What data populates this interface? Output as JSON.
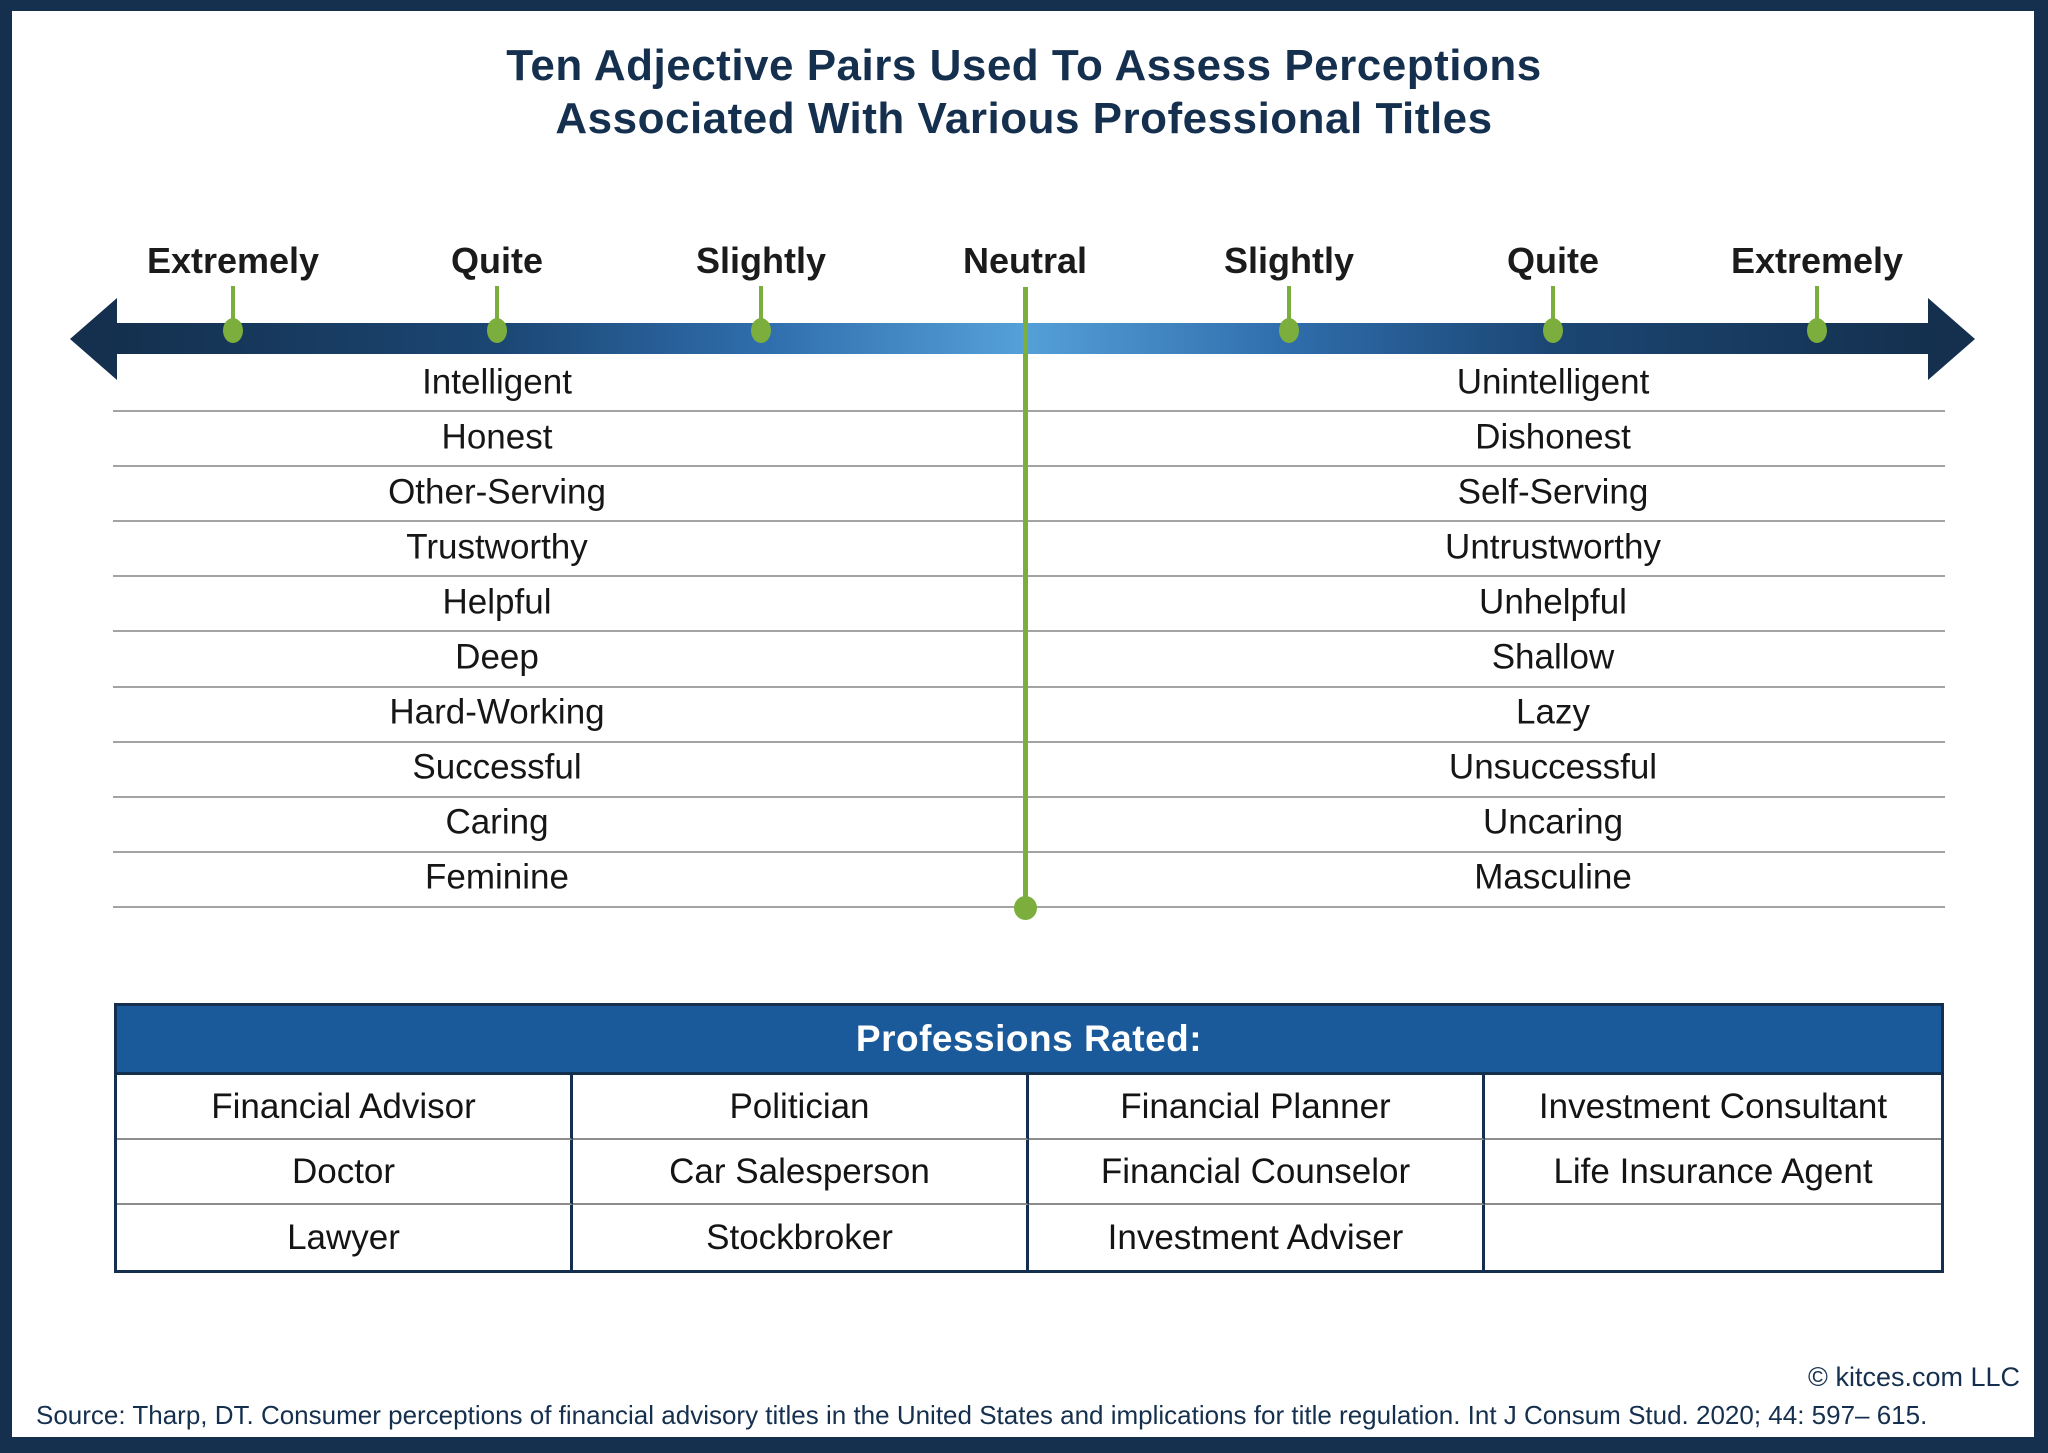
{
  "title": {
    "line1": "Ten Adjective Pairs Used To Assess Perceptions",
    "line2": "Associated With Various Professional Titles"
  },
  "scale": {
    "labels": [
      "Extremely",
      "Quite",
      "Slightly",
      "Neutral",
      "Slightly",
      "Quite",
      "Extremely"
    ],
    "neutral_index": 3
  },
  "adjective_pairs": [
    {
      "left": "Intelligent",
      "right": "Unintelligent"
    },
    {
      "left": "Honest",
      "right": "Dishonest"
    },
    {
      "left": "Other-Serving",
      "right": "Self-Serving"
    },
    {
      "left": "Trustworthy",
      "right": "Untrustworthy"
    },
    {
      "left": "Helpful",
      "right": "Unhelpful"
    },
    {
      "left": "Deep",
      "right": "Shallow"
    },
    {
      "left": "Hard-Working",
      "right": "Lazy"
    },
    {
      "left": "Successful",
      "right": "Unsuccessful"
    },
    {
      "left": "Caring",
      "right": "Uncaring"
    },
    {
      "left": "Feminine",
      "right": "Masculine"
    }
  ],
  "professions": {
    "header": "Professions Rated:",
    "rows": [
      [
        "Financial Advisor",
        "Politician",
        "Financial Planner",
        "Investment Consultant"
      ],
      [
        "Doctor",
        "Car Salesperson",
        "Financial Counselor",
        "Life Insurance Agent"
      ],
      [
        "Lawyer",
        "Stockbroker",
        "Investment Adviser",
        ""
      ]
    ]
  },
  "footer": {
    "copyright": "© kitces.com LLC",
    "source": "Source: Tharp, DT. Consumer perceptions of financial advisory titles in the United States and implications for title regulation. Int J Consum Stud. 2020; 44: 597– 615."
  },
  "colors": {
    "navy": "#15304e",
    "green": "#7cae3e",
    "bar_dark": "#14304e",
    "bar_quarter": "#1b4673",
    "bar_mid": "#2f6dac",
    "bar_light": "#55a0d8",
    "table_header_blue": "#1b5a9a",
    "row_line_gray": "#a3a3a3"
  }
}
